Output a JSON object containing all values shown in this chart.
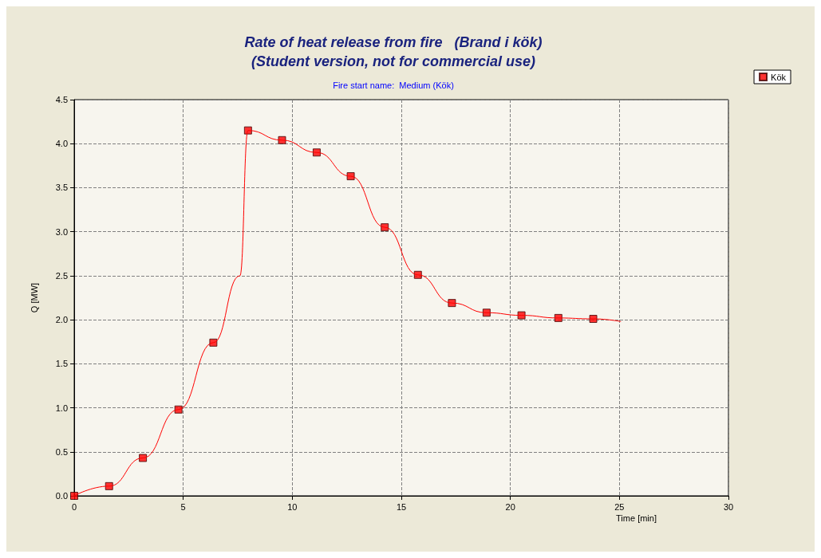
{
  "chart_data": {
    "type": "line",
    "title": "Rate of heat release from fire   (Brand i kök)\n(Student version, not for commercial use)",
    "subtitle": "Fire start name:  Medium (Kök)",
    "xlabel": "Time [min]",
    "ylabel": "Q [MW]",
    "series": [
      {
        "color": "#ff0000",
        "marker": "none",
        "x": [
          0,
          1.6,
          3.15,
          4.78,
          6.38,
          7.6,
          7.97,
          9.53,
          11.12,
          12.68,
          14.24,
          15.76,
          17.32,
          18.91,
          20.51,
          22.2,
          23.8,
          25.07
        ],
        "values": [
          0,
          0.11,
          0.43,
          0.98,
          1.74,
          2.5,
          4.15,
          4.04,
          3.9,
          3.63,
          3.05,
          2.51,
          2.19,
          2.08,
          2.05,
          2.02,
          2.01,
          1.98
        ]
      },
      {
        "type": "scatter",
        "name": "Kök",
        "color": "#ff0000",
        "marker": "square",
        "x": [
          0,
          1.6,
          3.15,
          4.78,
          6.38,
          7.97,
          9.53,
          11.12,
          12.68,
          14.24,
          15.76,
          17.32,
          18.91,
          20.51,
          22.2,
          23.8
        ],
        "values": [
          0,
          0.11,
          0.43,
          0.98,
          1.74,
          4.15,
          4.04,
          3.9,
          3.63,
          3.05,
          2.51,
          2.19,
          2.08,
          2.05,
          2.02,
          2.01
        ]
      }
    ],
    "xlim": [
      0,
      30
    ],
    "xticks": [
      0,
      5,
      10,
      15,
      20,
      25,
      30
    ],
    "ylim": [
      0,
      4.5
    ],
    "yticks": [
      {
        "value": 0,
        "label": "0.0"
      },
      {
        "value": 0.5,
        "label": "0.5"
      },
      {
        "value": 1,
        "label": "1.0"
      },
      {
        "value": 1.5,
        "label": "1.5"
      },
      {
        "value": 2,
        "label": "2.0"
      },
      {
        "value": 2.5,
        "label": "2.5"
      },
      {
        "value": 3,
        "label": "3.0"
      },
      {
        "value": 3.5,
        "label": "3.5"
      },
      {
        "value": 4,
        "label": "4.0"
      },
      {
        "value": 4.5,
        "label": "4.5"
      }
    ],
    "grid": true,
    "legend": "top right",
    "line_style": "solid"
  }
}
